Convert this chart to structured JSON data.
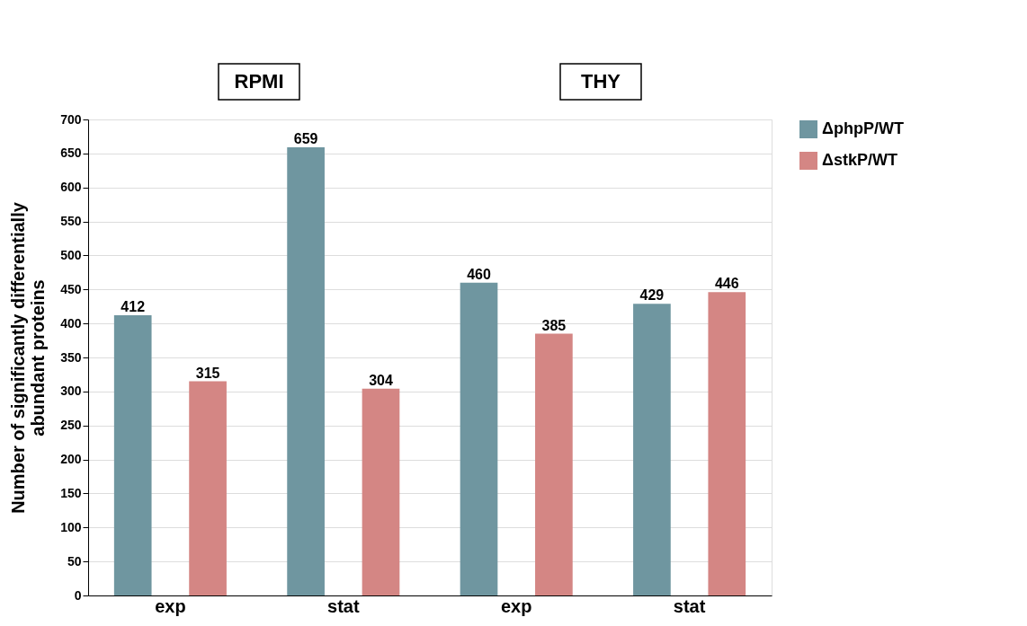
{
  "chart_data": {
    "type": "bar",
    "ylabel": "Number of significantly differentially\nabundant proteins",
    "categories": [
      "exp",
      "stat",
      "exp",
      "stat"
    ],
    "series": [
      {
        "name": "ΔphpP/WT",
        "color": "#6f96a0",
        "values": [
          412,
          659,
          460,
          429
        ]
      },
      {
        "name": "ΔstkP/WT",
        "color": "#d48684",
        "values": [
          315,
          304,
          385,
          446
        ]
      }
    ],
    "ylim": [
      0,
      700
    ],
    "yticks": [
      0,
      50,
      100,
      150,
      200,
      250,
      300,
      350,
      400,
      450,
      500,
      550,
      600,
      650,
      700
    ],
    "grid": "y",
    "legend": "right",
    "data_labels": true,
    "annotations": [
      "RPMI",
      "THY"
    ]
  }
}
